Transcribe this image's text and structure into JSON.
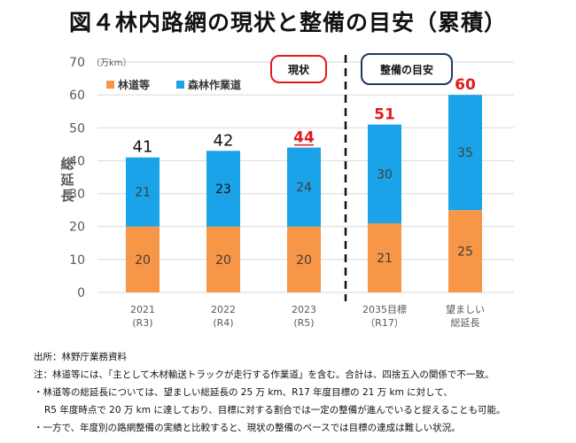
{
  "title": "図４林内路網の現状と整備の目安（累積）",
  "chart_data": {
    "type": "bar",
    "stacked": true,
    "unit": "（万km）",
    "ylabel": "総延長",
    "ylim": [
      0,
      70
    ],
    "yticks": [
      0,
      10,
      20,
      30,
      40,
      50,
      60,
      70
    ],
    "grid": true,
    "categories": [
      [
        "2021",
        "(R3)"
      ],
      [
        "2022",
        "(R4)"
      ],
      [
        "2023",
        "(R5)"
      ],
      [
        "2035目標",
        "（R17）"
      ],
      [
        "望ましい",
        "総延長"
      ]
    ],
    "series": [
      {
        "name": "林道等",
        "color": "#f79646",
        "values": [
          20,
          20,
          20,
          21,
          25
        ]
      },
      {
        "name": "森林作業道",
        "color": "#1aa3e8",
        "values": [
          21,
          23,
          24,
          30,
          35
        ]
      }
    ],
    "segment_labels": [
      [
        "20",
        "21"
      ],
      [
        "20",
        "23"
      ],
      [
        "20",
        "24"
      ],
      [
        "21",
        "30"
      ],
      [
        "25",
        "35"
      ]
    ],
    "totals": [
      "41",
      "42",
      "44",
      "51",
      "60"
    ],
    "total_colors": [
      "#111111",
      "#111111",
      "#e31a1c",
      "#e31a1c",
      "#e31a1c"
    ],
    "annotations": {
      "current": {
        "label": "現状",
        "border_color": "#e31a1c"
      },
      "target": {
        "label": "整備の目安",
        "border_color": "#1f3864"
      }
    }
  },
  "notes": [
    "出所：林野庁業務資料",
    "注：林道等には、「主として木材輸送トラックが走行する作業道」を含む。合計は、四捨五入の関係で不一致。",
    "・林道等の総延長については、望ましい総延長の 25 万 km、R17 年度目標の 21 万 km に対して、",
    "R5 年度時点で 20 万 km に達しており、目標に対する割合では一定の整備が進んでいると捉えることも可能。",
    "・一方で、年度別の路網整備の実績と比較すると、現状の整備のペースでは目標の達成は難しい状況。"
  ]
}
